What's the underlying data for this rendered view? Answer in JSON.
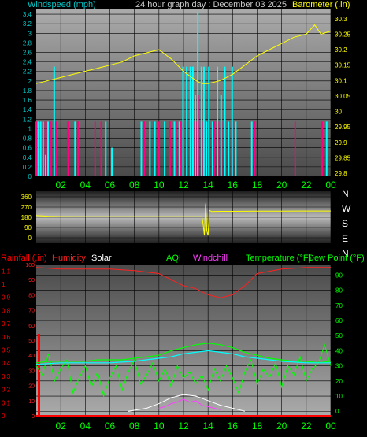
{
  "header": {
    "left_label": "Windspeed (mph)",
    "title": "24 hour graph day : December 03 2025",
    "right_label": "Barometer (.in)"
  },
  "middle": {
    "compass_labels": [
      "N",
      "W",
      "S",
      "E",
      "N"
    ]
  },
  "bottom_header": {
    "rainfall": "Rainfall (.in)",
    "humidity": "Humidity",
    "solar": "Solar",
    "aqi": "AQI",
    "windchill": "Windchill",
    "temperature": "Temperature (°F)",
    "dewpoint": "Dew Point (°F)"
  },
  "colors": {
    "windspeed_axis": "#00c8c8",
    "barometer": "#ffff00",
    "wind_bars": "#00ffff",
    "gust_bars": "#ff0080",
    "rain": "#ff0000",
    "humidity": "#ff2020",
    "aqi": "#00ff00",
    "windchill": "#ff40ff",
    "temperature": "#00ff00",
    "dewpoint": "#00ffff"
  },
  "chart_data": [
    {
      "id": "wind_baro",
      "type": "bar",
      "x_ticks": [
        "02",
        "04",
        "06",
        "08",
        "10",
        "12",
        "14",
        "16",
        "18",
        "20",
        "22",
        "00"
      ],
      "x_range_hours": [
        0,
        24
      ],
      "y_left": {
        "ticks": [
          "0",
          "0.2",
          "0.4",
          "0.6",
          "0.8",
          "1",
          "1.2",
          "1.4",
          "1.6",
          "1.8",
          "2",
          "2.2",
          "2.4",
          "2.6",
          "2.8",
          "3",
          "3.2",
          "3.4"
        ],
        "range": [
          0,
          3.5
        ]
      },
      "y_right": {
        "ticks": [
          "29.8",
          "29.85",
          "29.9",
          "29.95",
          "30",
          "30.05",
          "30.1",
          "30.15",
          "30.2",
          "30.25",
          "30.3"
        ],
        "range": [
          29.79,
          30.33
        ]
      },
      "series": [
        {
          "kind": "bar",
          "x": [
            0.1,
            0.3,
            0.5,
            0.7,
            0.9,
            1.4,
            3.1,
            5.6,
            6.1,
            8.5,
            9.2,
            9.6,
            10.4,
            11.2,
            11.6,
            11.9,
            12.2,
            12.5,
            12.7,
            12.9,
            13.1,
            13.4,
            13.6,
            13.8,
            14.0,
            14.3,
            14.7,
            15.0,
            15.3,
            15.6,
            15.9,
            16.2,
            17.5,
            23.6
          ],
          "values": [
            1.15,
            1.15,
            1.15,
            0.45,
            1.15,
            2.3,
            1.15,
            1.15,
            0.6,
            1.15,
            1.15,
            1.15,
            1.15,
            1.15,
            1.15,
            2.3,
            2.3,
            2.3,
            2.3,
            1.7,
            3.45,
            2.3,
            2.3,
            1.15,
            2.3,
            1.15,
            2.3,
            1.7,
            2.3,
            1.15,
            2.3,
            1.15,
            1.15,
            1.15
          ]
        },
        {
          "kind": "bar",
          "x": [
            0.0,
            0.2,
            0.4,
            0.6,
            0.8,
            1.0,
            1.2,
            1.6,
            2.6,
            3.4,
            4.8,
            5.3,
            8.8,
            9.6,
            10.0,
            10.9,
            11.4,
            11.8,
            12.0,
            12.3,
            12.6,
            12.8,
            13.0,
            13.2,
            13.5,
            13.7,
            14.1,
            14.5,
            14.8,
            15.1,
            15.4,
            15.7,
            16.0,
            17.8,
            21.1,
            23.3
          ],
          "values": [
            1.15,
            1.15,
            1.15,
            1.15,
            1.15,
            1.15,
            1.15,
            1.15,
            1.15,
            1.15,
            1.15,
            1.15,
            1.15,
            1.15,
            1.15,
            1.15,
            1.15,
            1.15,
            1.15,
            1.15,
            1.15,
            1.15,
            1.15,
            1.7,
            1.15,
            1.15,
            1.15,
            1.15,
            1.15,
            1.15,
            1.15,
            1.15,
            1.15,
            1.15,
            1.15,
            1.15
          ]
        },
        {
          "kind": "line",
          "x": [
            0,
            1,
            2,
            3,
            4,
            5,
            6,
            7,
            8,
            9,
            10,
            11,
            12,
            13,
            13.5,
            14,
            15,
            16,
            17,
            18,
            19,
            20,
            21,
            22,
            22.7,
            23.2,
            24
          ],
          "values": [
            30.09,
            30.1,
            30.11,
            30.12,
            30.13,
            30.14,
            30.15,
            30.16,
            30.18,
            30.19,
            30.2,
            30.17,
            30.13,
            30.1,
            30.09,
            30.09,
            30.1,
            30.12,
            30.15,
            30.18,
            30.2,
            30.22,
            30.24,
            30.25,
            30.28,
            30.25,
            30.26
          ]
        }
      ]
    },
    {
      "id": "wind_direction",
      "type": "line",
      "y_ticks": [
        "360",
        "270",
        "180",
        "90",
        "0"
      ],
      "range": [
        0,
        360
      ],
      "series": [
        {
          "kind": "line",
          "x": [
            0,
            1,
            2,
            4,
            6,
            8,
            10,
            12,
            13.5,
            13.6,
            13.7,
            13.8,
            13.9,
            14.0,
            14.1,
            14.3,
            15,
            16,
            18,
            20,
            22,
            24
          ],
          "values": [
            195,
            188,
            186,
            185,
            185,
            185,
            185,
            185,
            185,
            120,
            20,
            300,
            60,
            20,
            240,
            230,
            232,
            232,
            234,
            234,
            235,
            235
          ]
        }
      ]
    },
    {
      "id": "weather",
      "type": "line",
      "y_left_rain": {
        "ticks": [
          "0",
          "0.1",
          "0.2",
          "0.3",
          "0.4",
          "0.5",
          "0.6",
          "0.7",
          "0.8",
          "0.9",
          "1",
          "1.1"
        ],
        "range": [
          0,
          1.15
        ]
      },
      "y_left_humidity": {
        "ticks": [
          "0",
          "10",
          "20",
          "30",
          "40",
          "50",
          "60",
          "70",
          "80",
          "90",
          "100"
        ],
        "range": [
          0,
          100
        ]
      },
      "y_right": {
        "ticks": [
          "0",
          "10",
          "20",
          "30",
          "40",
          "50",
          "60",
          "70",
          "80",
          "90"
        ],
        "range": [
          -3,
          97
        ]
      },
      "series": [
        {
          "kind": "line",
          "x": [
            0,
            2,
            4,
            6,
            8,
            10,
            11,
            12,
            13,
            14,
            15,
            16,
            17,
            18,
            20,
            22,
            24
          ],
          "values": [
            98,
            97,
            97,
            97,
            96,
            94,
            90,
            86,
            84,
            80,
            78,
            80,
            86,
            94,
            97,
            98,
            98
          ]
        },
        {
          "kind": "line",
          "x": [
            0,
            1,
            2,
            3,
            4,
            5,
            6,
            7,
            8,
            9,
            10,
            11,
            12,
            13,
            14,
            15,
            16,
            17,
            18,
            19,
            20,
            21,
            22,
            23,
            24
          ],
          "values": [
            32,
            33,
            33,
            33,
            33,
            34,
            34,
            34,
            35,
            36,
            37,
            40,
            42,
            44,
            45,
            44,
            42,
            39,
            37,
            35,
            34,
            33,
            33,
            32,
            33
          ]
        },
        {
          "kind": "line",
          "x": [
            0,
            2,
            4,
            6,
            8,
            10,
            11,
            12,
            13,
            14,
            15,
            16,
            17,
            18,
            20,
            22,
            24
          ],
          "values": [
            31,
            32,
            32,
            32,
            33,
            35,
            36,
            38,
            39,
            40,
            39,
            38,
            36,
            35,
            33,
            32,
            32
          ]
        },
        {
          "kind": "line",
          "x": [
            0,
            0.5,
            1,
            1.5,
            2,
            2.5,
            3,
            3.5,
            4,
            4.5,
            5,
            5.5,
            6,
            6.5,
            7,
            7.5,
            8,
            8.5,
            9,
            9.5,
            10,
            10.5,
            11,
            11.5,
            12,
            12.5,
            13,
            13.5,
            14,
            14.5,
            15,
            15.5,
            16,
            16.5,
            17,
            17.5,
            18,
            18.5,
            19,
            19.5,
            20,
            20.5,
            21,
            21.5,
            22,
            22.5,
            23,
            23.5,
            24
          ],
          "values": [
            30,
            24,
            38,
            20,
            28,
            34,
            12,
            22,
            30,
            16,
            26,
            10,
            22,
            30,
            14,
            26,
            34,
            18,
            24,
            32,
            20,
            28,
            16,
            30,
            22,
            26,
            18,
            24,
            14,
            28,
            20,
            30,
            22,
            12,
            26,
            34,
            18,
            28,
            22,
            32,
            16,
            30,
            24,
            36,
            20,
            28,
            32,
            44,
            30
          ]
        },
        {
          "kind": "line",
          "x": [
            10,
            10.5,
            11,
            11.5,
            12,
            12.5,
            13,
            13.5,
            14,
            14.5,
            15
          ],
          "values": [
            2,
            3,
            5,
            6,
            8,
            6,
            7,
            4,
            3,
            2,
            1
          ]
        },
        {
          "kind": "line",
          "x": [
            7.5,
            9,
            10,
            11,
            12,
            13,
            14,
            15,
            16,
            17
          ],
          "values": [
            0,
            2,
            5,
            9,
            11,
            10,
            7,
            4,
            2,
            0
          ]
        },
        {
          "kind": "line",
          "x": [
            0,
            24
          ],
          "values": [
            0,
            0
          ]
        }
      ]
    }
  ]
}
